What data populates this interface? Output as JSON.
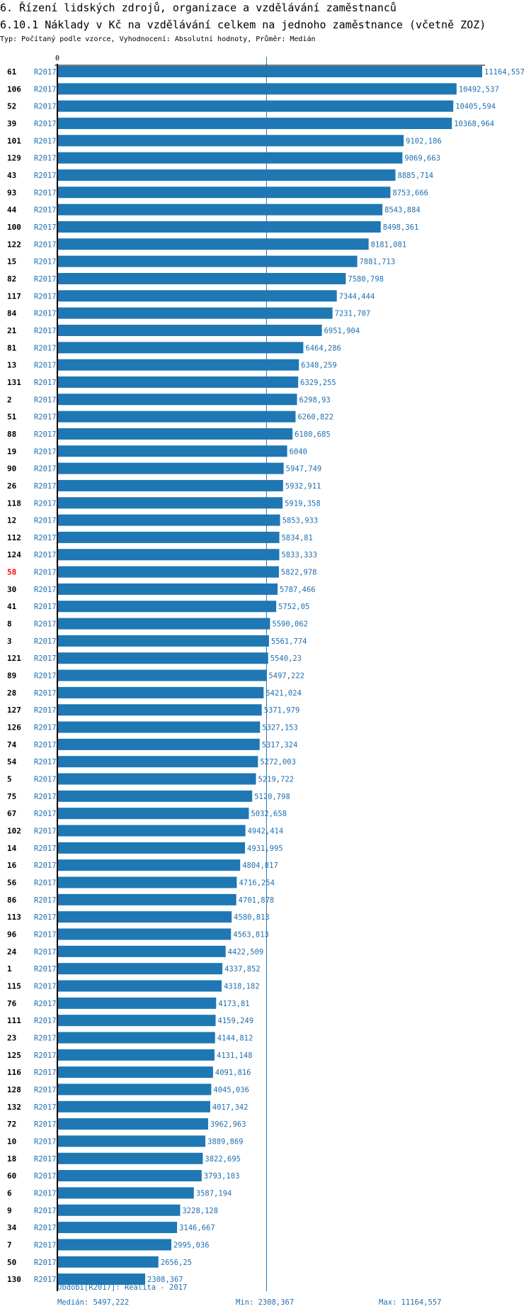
{
  "header": {
    "title": "6. Řízení lidských zdrojů, organizace a vzdělávání zaměstnanců",
    "subtitle": "6.10.1 Náklady v Kč na vzdělávání celkem na jednoho zaměstnance (včetně ZOZ)",
    "meta": "Typ: Počítaný podle vzorce, Vyhodnocení: Absolutní hodnoty, Průměr: Medián"
  },
  "footer": {
    "period": "Období[R2017]: Realita - 2017",
    "median": "Medián: 5497,222",
    "min": "Min: 2308,367",
    "max": "Max: 11164,557"
  },
  "colors": {
    "bar": "#1f77b4",
    "label": "#1f6fb0",
    "highlight": "#ff0000",
    "axis": "#000000"
  },
  "chart_data": {
    "type": "bar",
    "orientation": "horizontal",
    "x_tick_labels": [
      "0"
    ],
    "xlim": [
      0,
      11164.557
    ],
    "median": 5497.222,
    "series_label": "R2017",
    "highlighted": "58",
    "categories": [
      "61",
      "106",
      "52",
      "39",
      "101",
      "129",
      "43",
      "93",
      "44",
      "100",
      "122",
      "15",
      "82",
      "117",
      "84",
      "21",
      "81",
      "13",
      "131",
      "2",
      "51",
      "88",
      "19",
      "90",
      "26",
      "118",
      "12",
      "112",
      "124",
      "58",
      "30",
      "41",
      "8",
      "3",
      "121",
      "89",
      "28",
      "127",
      "126",
      "74",
      "54",
      "5",
      "75",
      "67",
      "102",
      "14",
      "16",
      "56",
      "86",
      "113",
      "96",
      "24",
      "1",
      "115",
      "76",
      "111",
      "23",
      "125",
      "116",
      "128",
      "132",
      "72",
      "10",
      "18",
      "60",
      "6",
      "9",
      "34",
      "7",
      "50",
      "130"
    ],
    "values": [
      11164.557,
      10492.537,
      10405.594,
      10368.964,
      9102.186,
      9069.663,
      8885.714,
      8753.666,
      8543.884,
      8498.361,
      8181.081,
      7881.713,
      7580.798,
      7344.444,
      7231.707,
      6951.904,
      6464.286,
      6348.259,
      6329.255,
      6298.93,
      6260.822,
      6180.685,
      6040,
      5947.749,
      5932.911,
      5919.358,
      5853.933,
      5834.81,
      5833.333,
      5822.978,
      5787.466,
      5752.05,
      5590.062,
      5561.774,
      5540.23,
      5497.222,
      5421.024,
      5371.979,
      5327.153,
      5317.324,
      5272.003,
      5219.722,
      5120.798,
      5032.658,
      4942.414,
      4931.995,
      4804.817,
      4716.254,
      4701.878,
      4580.813,
      4563.813,
      4422.509,
      4337.852,
      4318.182,
      4173.81,
      4159.249,
      4144.812,
      4131.148,
      4091.816,
      4045.036,
      4017.342,
      3962.963,
      3889.869,
      3822.695,
      3793.103,
      3587.194,
      3228.128,
      3146.667,
      2995.036,
      2656.25,
      2308.367
    ],
    "value_labels": [
      "11164,557",
      "10492,537",
      "10405,594",
      "10368,964",
      "9102,186",
      "9069,663",
      "8885,714",
      "8753,666",
      "8543,884",
      "8498,361",
      "8181,081",
      "7881,713",
      "7580,798",
      "7344,444",
      "7231,707",
      "6951,904",
      "6464,286",
      "6348,259",
      "6329,255",
      "6298,93",
      "6260,822",
      "6180,685",
      "6040",
      "5947,749",
      "5932,911",
      "5919,358",
      "5853,933",
      "5834,81",
      "5833,333",
      "5822,978",
      "5787,466",
      "5752,05",
      "5590,062",
      "5561,774",
      "5540,23",
      "5497,222",
      "5421,024",
      "5371,979",
      "5327,153",
      "5317,324",
      "5272,003",
      "5219,722",
      "5120,798",
      "5032,658",
      "4942,414",
      "4931,995",
      "4804,817",
      "4716,254",
      "4701,878",
      "4580,813",
      "4563,813",
      "4422,509",
      "4337,852",
      "4318,182",
      "4173,81",
      "4159,249",
      "4144,812",
      "4131,148",
      "4091,816",
      "4045,036",
      "4017,342",
      "3962,963",
      "3889,869",
      "3822,695",
      "3793,103",
      "3587,194",
      "3228,128",
      "3146,667",
      "2995,036",
      "2656,25",
      "2308,367"
    ]
  }
}
